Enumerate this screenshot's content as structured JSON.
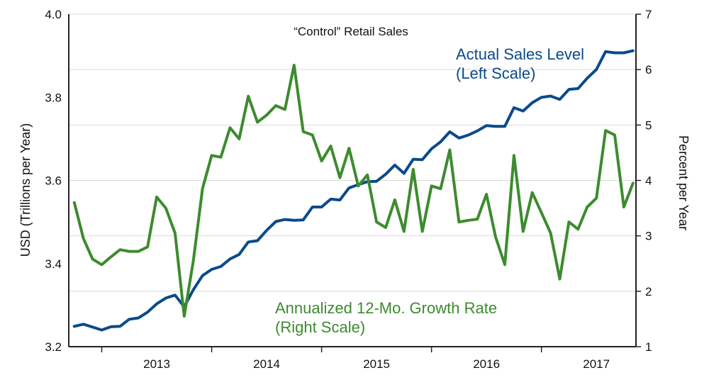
{
  "chart_data": {
    "type": "line",
    "title": "“Control” Retail Sales",
    "x_categories": [
      "2013",
      "2014",
      "2015",
      "2016",
      "2017"
    ],
    "x_range": [
      2012.7,
      2017.86
    ],
    "left_axis": {
      "label": "USD (Trillions per Year)",
      "range": [
        3.2,
        4.0
      ],
      "ticks": [
        3.2,
        3.4,
        3.6,
        3.8,
        4.0
      ],
      "tick_labels": [
        "3.2",
        "3.4",
        "3.6",
        "3.8",
        "4.0"
      ]
    },
    "right_axis": {
      "label": "Percent per Year",
      "range": [
        1,
        7
      ],
      "ticks": [
        1,
        2,
        3,
        4,
        5,
        6,
        7
      ],
      "tick_labels": [
        "1",
        "2",
        "3",
        "4",
        "5",
        "6",
        "7"
      ]
    },
    "grid": true,
    "series": [
      {
        "name": "Actual Sales Level",
        "label_lines": [
          "Actual Sales Level",
          "(Left Scale)"
        ],
        "axis": "left",
        "color": "#0b4a8b",
        "start": 2012.75,
        "step": 0.08333,
        "values": [
          3.249,
          3.254,
          3.247,
          3.24,
          3.248,
          3.249,
          3.266,
          3.269,
          3.283,
          3.303,
          3.317,
          3.324,
          3.296,
          3.337,
          3.371,
          3.386,
          3.393,
          3.411,
          3.422,
          3.452,
          3.455,
          3.48,
          3.501,
          3.506,
          3.504,
          3.505,
          3.536,
          3.536,
          3.555,
          3.553,
          3.582,
          3.59,
          3.597,
          3.598,
          3.615,
          3.637,
          3.617,
          3.651,
          3.65,
          3.676,
          3.693,
          3.717,
          3.702,
          3.709,
          3.719,
          3.732,
          3.73,
          3.73,
          3.775,
          3.767,
          3.787,
          3.8,
          3.803,
          3.795,
          3.819,
          3.821,
          3.846,
          3.867,
          3.91,
          3.907,
          3.907,
          3.912
        ]
      },
      {
        "name": "Annualized 12-Mo. Growth Rate",
        "label_lines": [
          "Annualized 12-Mo. Growth Rate",
          "(Right Scale)"
        ],
        "axis": "right",
        "color": "#3d8b2e",
        "start": 2012.75,
        "step": 0.08333,
        "values": [
          3.6,
          2.95,
          2.58,
          2.48,
          2.62,
          2.75,
          2.72,
          2.72,
          2.8,
          3.7,
          3.5,
          3.05,
          1.55,
          2.55,
          3.85,
          4.45,
          4.42,
          4.95,
          4.75,
          5.52,
          5.05,
          5.18,
          5.35,
          5.28,
          6.08,
          4.88,
          4.82,
          4.35,
          4.62,
          4.05,
          4.58,
          3.9,
          4.1,
          3.25,
          3.15,
          3.65,
          3.08,
          4.2,
          3.08,
          3.9,
          3.85,
          4.55,
          3.25,
          3.28,
          3.3,
          3.75,
          2.98,
          2.48,
          4.45,
          3.08,
          3.78,
          3.42,
          3.05,
          2.22,
          3.25,
          3.12,
          3.52,
          3.68,
          4.9,
          4.82,
          3.52,
          3.95
        ]
      }
    ]
  }
}
